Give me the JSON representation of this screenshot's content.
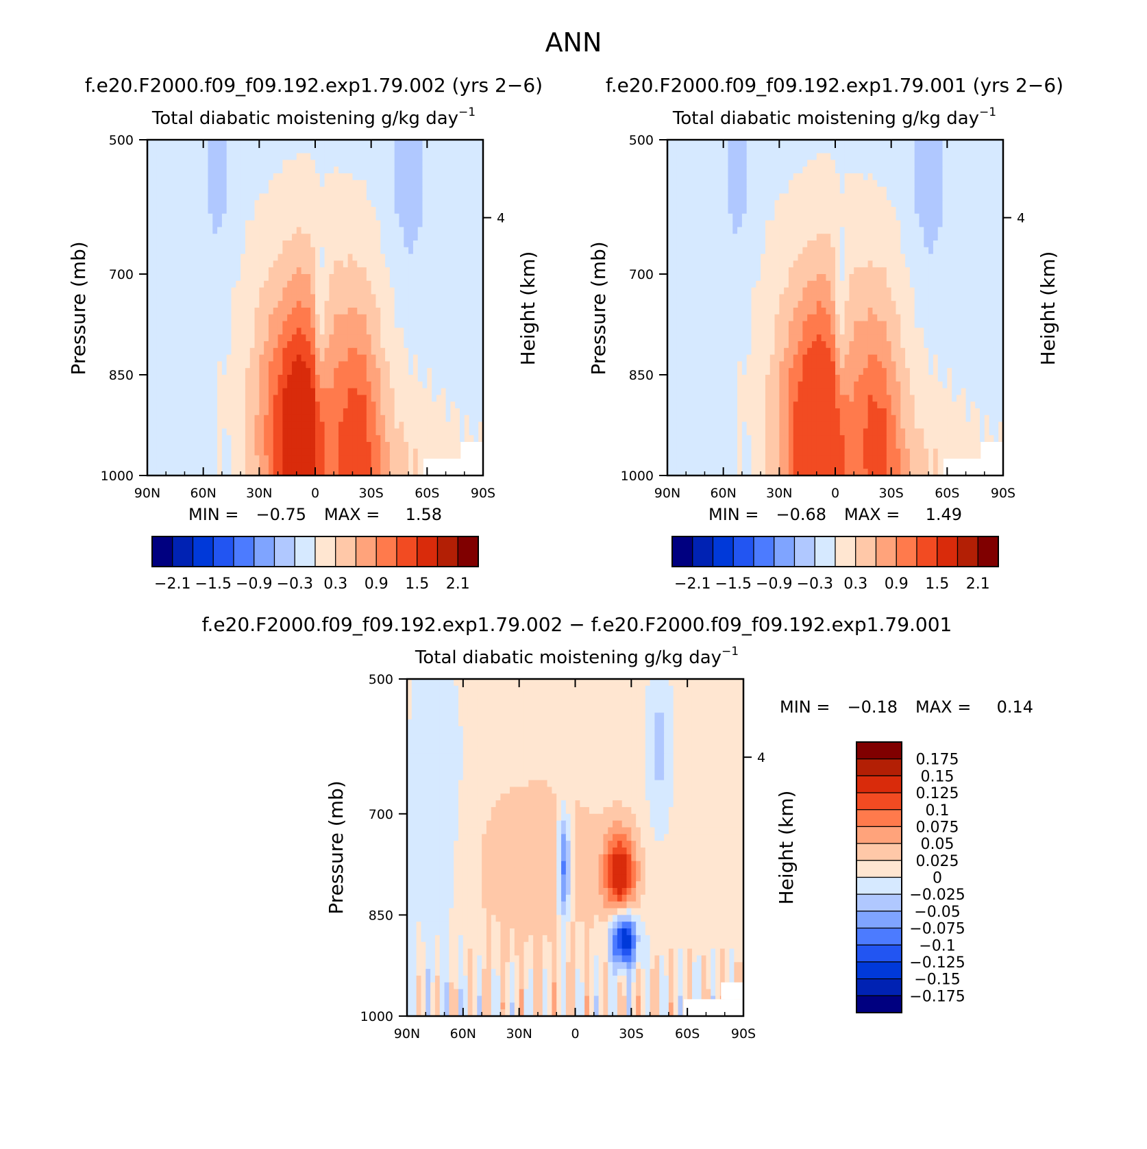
{
  "figure": {
    "title": "ANN"
  },
  "chart_data": [
    {
      "type": "heatmap",
      "case_title": "f.e20.F2000.f09_f09.192.exp1.79.002 (yrs 2−6)",
      "variable_label": "Total diabatic moistening",
      "units_label": "g/kg day",
      "units_exponent": "−1",
      "ylabel": "Pressure (mb)",
      "ylabel_right": "Height (km)",
      "yticks": [
        "500",
        "700",
        "850",
        "1000"
      ],
      "ytick_values": [
        500,
        700,
        850,
        1000
      ],
      "ylim": [
        500,
        1000
      ],
      "right_ticks": [
        "4"
      ],
      "right_tick_pressure": [
        616
      ],
      "xticks": [
        "90N",
        "60N",
        "30N",
        "0",
        "30S",
        "60S",
        "90S"
      ],
      "xlim": [
        90,
        -90
      ],
      "min_label": "MIN =",
      "min_value": "−0.75",
      "max_label": "MAX =",
      "max_value": "1.58",
      "colorbar_labels": [
        "−2.1",
        "−1.5",
        "−0.9",
        "−0.3",
        "0.3",
        "0.9",
        "1.5",
        "2.1"
      ],
      "contour_levels": [
        -2.1,
        -1.8,
        -1.5,
        -1.2,
        -0.9,
        -0.6,
        -0.3,
        0,
        0.3,
        0.6,
        0.9,
        1.2,
        1.5,
        1.8,
        2.1
      ],
      "field": {
        "itcz_lat": 6,
        "itcz_amp": 1.5,
        "itcz_top": 700,
        "sh_lat": -22,
        "sh_amp": 1.1,
        "nh_lat": 20,
        "nh_amp": 0.9,
        "min": -0.75,
        "max": 1.58
      }
    },
    {
      "type": "heatmap",
      "case_title": "f.e20.F2000.f09_f09.192.exp1.79.001 (yrs 2−6)",
      "variable_label": "Total diabatic moistening",
      "units_label": "g/kg day",
      "units_exponent": "−1",
      "ylabel": "Pressure (mb)",
      "ylabel_right": "Height (km)",
      "yticks": [
        "500",
        "700",
        "850",
        "1000"
      ],
      "ytick_values": [
        500,
        700,
        850,
        1000
      ],
      "ylim": [
        500,
        1000
      ],
      "right_ticks": [
        "4"
      ],
      "right_tick_pressure": [
        616
      ],
      "xticks": [
        "90N",
        "60N",
        "30N",
        "0",
        "30S",
        "60S",
        "90S"
      ],
      "xlim": [
        90,
        -90
      ],
      "min_label": "MIN =",
      "min_value": "−0.68",
      "max_label": "MAX =",
      "max_value": "1.49",
      "colorbar_labels": [
        "−2.1",
        "−1.5",
        "−0.9",
        "−0.3",
        "0.3",
        "0.9",
        "1.5",
        "2.1"
      ],
      "contour_levels": [
        -2.1,
        -1.8,
        -1.5,
        -1.2,
        -0.9,
        -0.6,
        -0.3,
        0,
        0.3,
        0.6,
        0.9,
        1.2,
        1.5,
        1.8,
        2.1
      ],
      "field": {
        "itcz_lat": 6,
        "itcz_amp": 1.4,
        "itcz_top": 700,
        "sh_lat": -22,
        "sh_amp": 1.0,
        "nh_lat": 20,
        "nh_amp": 0.85,
        "min": -0.68,
        "max": 1.49
      }
    },
    {
      "type": "heatmap",
      "case_title": "f.e20.F2000.f09_f09.192.exp1.79.002 − f.e20.F2000.f09_f09.192.exp1.79.001",
      "variable_label": "Total diabatic moistening",
      "units_label": "g/kg day",
      "units_exponent": "−1",
      "ylabel": "Pressure (mb)",
      "ylabel_right": "Height (km)",
      "yticks": [
        "500",
        "700",
        "850",
        "1000"
      ],
      "ytick_values": [
        500,
        700,
        850,
        1000
      ],
      "ylim": [
        500,
        1000
      ],
      "right_ticks": [
        "4"
      ],
      "right_tick_pressure": [
        616
      ],
      "xticks": [
        "90N",
        "60N",
        "30N",
        "0",
        "30S",
        "60S",
        "90S"
      ],
      "xlim": [
        90,
        -90
      ],
      "min_label": "MIN =",
      "min_value": "−0.18",
      "max_label": "MAX =",
      "max_value": "0.14",
      "colorbar_labels": [
        "0.175",
        "0.15",
        "0.125",
        "0.1",
        "0.075",
        "0.05",
        "0.025",
        "0",
        "−0.025",
        "−0.05",
        "−0.075",
        "−0.1",
        "−0.125",
        "−0.15",
        "−0.175"
      ],
      "contour_levels": [
        0.175,
        0.15,
        0.125,
        0.1,
        0.075,
        0.05,
        0.025,
        0,
        -0.025,
        -0.05,
        -0.075,
        -0.1,
        -0.125,
        -0.15,
        -0.175
      ],
      "field": {
        "pos_lat": -24,
        "pos_p": 790,
        "pos_amp": 0.14,
        "neg_lat": -26,
        "neg_p": 885,
        "neg_amp": -0.18,
        "eq_neg_lat": 6,
        "eq_neg_p": 780,
        "eq_neg_amp": -0.12,
        "min": -0.18,
        "max": 0.14
      }
    }
  ],
  "colors": {
    "palette": [
      "#000080",
      "#0022b3",
      "#0039d9",
      "#2255f2",
      "#4c7bff",
      "#7fa4ff",
      "#b0c8ff",
      "#d6e9ff",
      "#ffe6d1",
      "#ffc8a8",
      "#ffa37b",
      "#ff7a4c",
      "#f24b22",
      "#d92b0b",
      "#b31f05",
      "#800000"
    ]
  }
}
